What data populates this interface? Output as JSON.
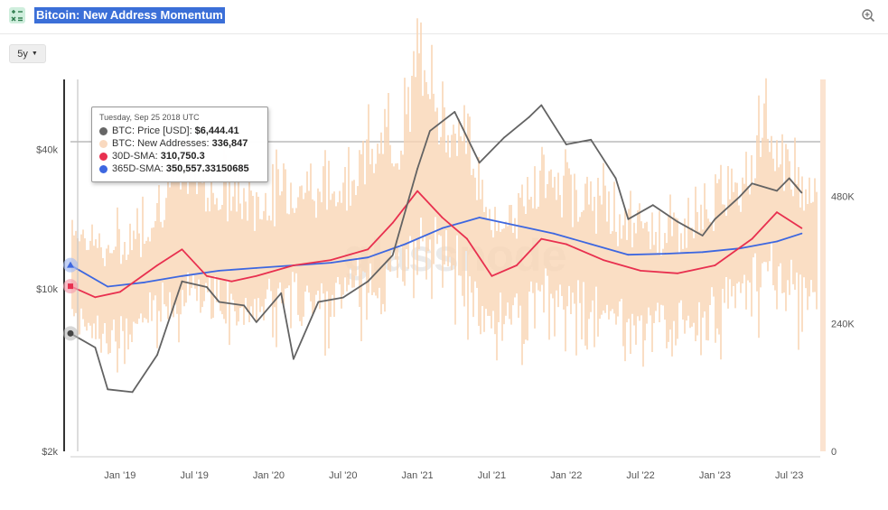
{
  "header": {
    "title": "Bitcoin: New Address Momentum",
    "range_label": "5y",
    "zoom_icon": "zoom-in-icon",
    "app_icon": "calculator-icon"
  },
  "watermark": "glassnode",
  "tooltip": {
    "date": "Tuesday, Sep 25 2018 UTC",
    "rows": [
      {
        "label": "BTC: Price [USD]:",
        "value": "$6,444.41",
        "color": "#666666"
      },
      {
        "label": "BTC: New Addresses:",
        "value": "336,847",
        "color": "#f9d9bf"
      },
      {
        "label": "30D-SMA:",
        "value": "310,750.3",
        "color": "#e8304f"
      },
      {
        "label": "365D-SMA:",
        "value": "350,557.33150685",
        "color": "#3d67e0"
      }
    ]
  },
  "colors": {
    "price": "#636363",
    "new_addresses": "#f9d5b5",
    "sma30": "#e8304f",
    "sma365": "#3d67e0",
    "right_axis_bar": "#fbe3d0"
  },
  "chart_data": {
    "type": "line",
    "title": "Bitcoin: New Address Momentum",
    "x_tick_labels": [
      "Jan '19",
      "Jul '19",
      "Jan '20",
      "Jul '20",
      "Jan '21",
      "Jul '21",
      "Jan '22",
      "Jul '22",
      "Jan '23",
      "Jul '23"
    ],
    "y_left": {
      "scale": "log",
      "tick_labels": [
        "$2k",
        "$10k",
        "$40k"
      ],
      "ticks": [
        2000,
        10000,
        40000
      ],
      "range": [
        2000,
        80000
      ]
    },
    "y_right": {
      "scale": "linear",
      "tick_labels": [
        "0",
        "240K",
        "480K"
      ],
      "ticks": [
        0,
        240000,
        480000
      ],
      "range": [
        0,
        700000
      ]
    },
    "grid": false,
    "series": [
      {
        "name": "BTC: Price [USD]",
        "axis": "left",
        "x": [
          "2018-09",
          "2018-11",
          "2018-12",
          "2019-02",
          "2019-04",
          "2019-06",
          "2019-08",
          "2019-09",
          "2019-11",
          "2019-12",
          "2020-02",
          "2020-03",
          "2020-05",
          "2020-07",
          "2020-09",
          "2020-11",
          "2021-01",
          "2021-02",
          "2021-04",
          "2021-06",
          "2021-08",
          "2021-10",
          "2021-11",
          "2022-01",
          "2022-03",
          "2022-05",
          "2022-06",
          "2022-08",
          "2022-10",
          "2022-12",
          "2023-01",
          "2023-03",
          "2023-04",
          "2023-06",
          "2023-07",
          "2023-08"
        ],
        "y": [
          6444,
          5600,
          3700,
          3600,
          5200,
          10800,
          10200,
          8800,
          8500,
          7200,
          9600,
          5000,
          8800,
          9200,
          10800,
          14000,
          33000,
          48000,
          58000,
          35000,
          45000,
          55000,
          62000,
          42000,
          44000,
          30000,
          20000,
          23000,
          19500,
          17000,
          20000,
          25000,
          28500,
          26500,
          30000,
          26000
        ]
      },
      {
        "name": "BTC: New Addresses",
        "axis": "right",
        "x": [
          "2018-09",
          "2018-12",
          "2019-03",
          "2019-06",
          "2019-09",
          "2019-12",
          "2020-03",
          "2020-06",
          "2020-09",
          "2020-12",
          "2021-01",
          "2021-03",
          "2021-05",
          "2021-07",
          "2021-09",
          "2021-11",
          "2022-01",
          "2022-03",
          "2022-06",
          "2022-09",
          "2022-12",
          "2023-03",
          "2023-05",
          "2023-08"
        ],
        "y": [
          336847,
          290000,
          330000,
          420000,
          380000,
          360000,
          390000,
          380000,
          430000,
          470000,
          560000,
          500000,
          450000,
          330000,
          350000,
          400000,
          380000,
          370000,
          330000,
          320000,
          340000,
          400000,
          470000,
          390000
        ]
      },
      {
        "name": "30D-SMA",
        "axis": "right",
        "x": [
          "2018-09",
          "2018-11",
          "2019-01",
          "2019-04",
          "2019-06",
          "2019-08",
          "2019-10",
          "2019-12",
          "2020-03",
          "2020-06",
          "2020-09",
          "2020-11",
          "2021-01",
          "2021-03",
          "2021-05",
          "2021-07",
          "2021-09",
          "2021-11",
          "2022-01",
          "2022-04",
          "2022-07",
          "2022-10",
          "2023-01",
          "2023-04",
          "2023-06",
          "2023-08"
        ],
        "y": [
          310750,
          290000,
          300000,
          350000,
          380000,
          330000,
          320000,
          330000,
          350000,
          360000,
          380000,
          430000,
          490000,
          440000,
          400000,
          330000,
          350000,
          400000,
          390000,
          360000,
          340000,
          335000,
          350000,
          400000,
          450000,
          420000
        ]
      },
      {
        "name": "365D-SMA",
        "axis": "right",
        "x": [
          "2018-09",
          "2018-12",
          "2019-03",
          "2019-06",
          "2019-09",
          "2019-12",
          "2020-03",
          "2020-06",
          "2020-09",
          "2020-12",
          "2021-03",
          "2021-06",
          "2021-09",
          "2021-12",
          "2022-03",
          "2022-06",
          "2022-09",
          "2022-12",
          "2023-03",
          "2023-06",
          "2023-08"
        ],
        "y": [
          350557,
          310000,
          318000,
          330000,
          340000,
          345000,
          350000,
          355000,
          365000,
          390000,
          420000,
          440000,
          425000,
          410000,
          390000,
          370000,
          372000,
          375000,
          382000,
          395000,
          410000
        ]
      }
    ]
  }
}
